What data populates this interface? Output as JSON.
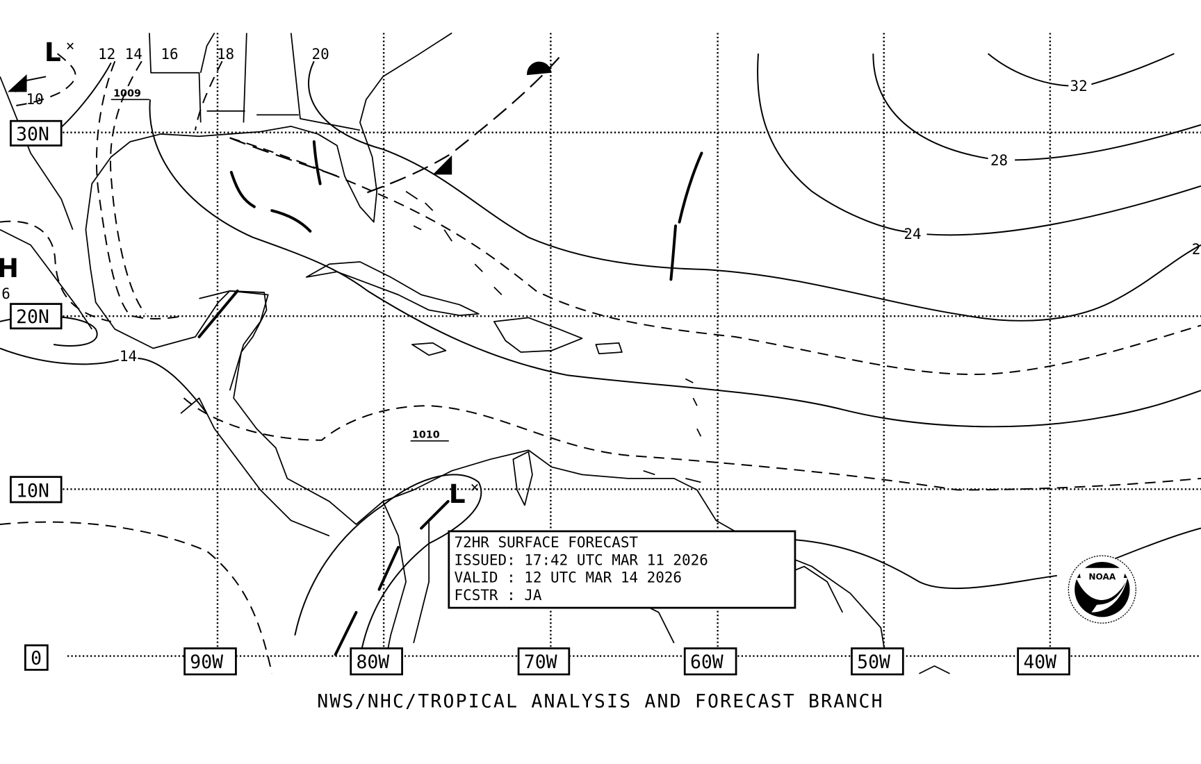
{
  "map": {
    "lat_labels": [
      "30N",
      "20N",
      "10N",
      "0"
    ],
    "lon_labels": [
      "90W",
      "80W",
      "70W",
      "60W",
      "50W",
      "40W"
    ],
    "isobar_labels": [
      "12",
      "14",
      "16",
      "18",
      "20",
      "10",
      "32",
      "28",
      "24",
      "14",
      "6",
      "2"
    ],
    "pressure_values": [
      "1009",
      "1010"
    ],
    "low_symbol": "L",
    "high_symbol": "H",
    "forecast_box": {
      "title": "72HR SURFACE FORECAST",
      "issued": "ISSUED: 17:42 UTC MAR 11 2026",
      "valid": "VALID : 12 UTC MAR 14 2026",
      "forecaster": "FCSTR : JA"
    },
    "footer": "NWS/NHC/TROPICAL ANALYSIS AND FORECAST BRANCH",
    "logo": "NOAA",
    "colors": {
      "ink": "#000000",
      "background": "#ffffff"
    }
  }
}
